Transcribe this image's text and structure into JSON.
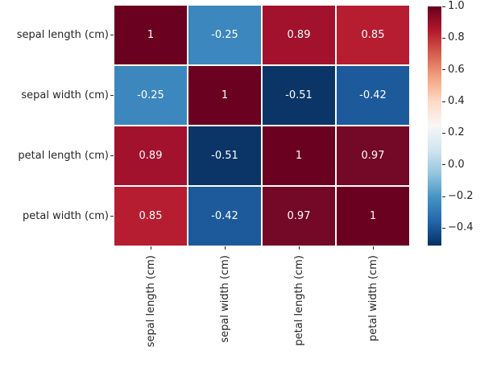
{
  "figure": {
    "background_color": "#ffffff",
    "tick_text_color": "#262626",
    "annotation_text_color": "#ffffff",
    "grid_line_color": "#ffffff"
  },
  "chart_data": {
    "type": "heatmap",
    "title": "",
    "xlabel": "",
    "ylabel": "",
    "x_categories": [
      "sepal length (cm)",
      "sepal width (cm)",
      "petal length (cm)",
      "petal width (cm)"
    ],
    "y_categories": [
      "sepal length (cm)",
      "sepal width (cm)",
      "petal length (cm)",
      "petal width (cm)"
    ],
    "matrix": [
      [
        1,
        -0.25,
        0.89,
        0.85
      ],
      [
        -0.25,
        1,
        -0.51,
        -0.42
      ],
      [
        0.89,
        -0.51,
        1,
        0.97
      ],
      [
        0.85,
        -0.42,
        0.97,
        1
      ]
    ],
    "cell_labels": [
      [
        "1",
        "-0.25",
        "0.89",
        "0.85"
      ],
      [
        "-0.25",
        "1",
        "-0.51",
        "-0.42"
      ],
      [
        "0.89",
        "-0.51",
        "1",
        "0.97"
      ],
      [
        "0.85",
        "-0.42",
        "0.97",
        "1"
      ]
    ],
    "value_colors": {
      "1": "#6b0120",
      "0.97": "#740827",
      "0.89": "#a2122d",
      "0.85": "#b71d31",
      "-0.25": "#3c87bd",
      "-0.42": "#1d5a9c",
      "-0.51": "#0b3567"
    },
    "colorbar": {
      "vmin": -0.51,
      "vmax": 1.0,
      "tick_values": [
        1.0,
        0.8,
        0.6,
        0.4,
        0.2,
        0.0,
        -0.2,
        -0.4
      ],
      "tick_labels": [
        "1.0",
        "0.8",
        "0.6",
        "0.4",
        "0.2",
        "0.0",
        "−0.2",
        "−0.4"
      ],
      "gradient_stops": [
        "#67001f",
        "#b2182b",
        "#d6604d",
        "#f4a582",
        "#fddbc7",
        "#f7f7f7",
        "#d1e5f0",
        "#92c5de",
        "#4393c3",
        "#2166ac",
        "#053061"
      ],
      "legend_position": "right"
    },
    "grid": false
  }
}
